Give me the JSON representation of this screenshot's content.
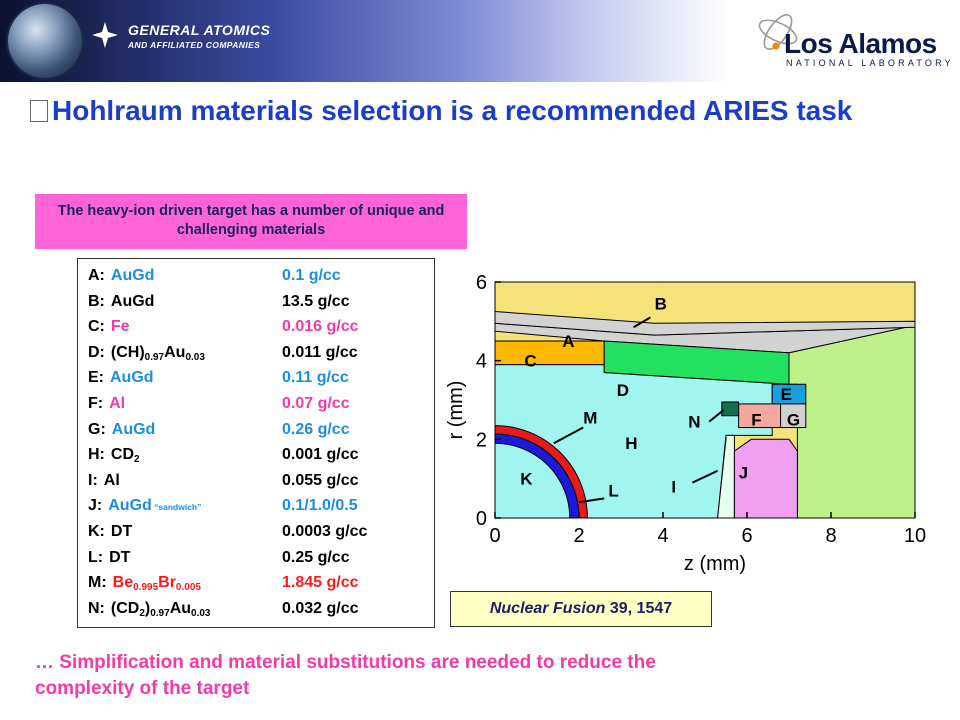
{
  "banner": {
    "ga_name": "GENERAL ATOMICS",
    "ga_sub": "AND AFFILIATED COMPANIES",
    "la_name": "Los Alamos",
    "la_sub": "NATIONAL LABORATORY",
    "gradient_colors": [
      "#0a1230",
      "#3a4aa0",
      "#ffffff"
    ]
  },
  "title": "Hohlraum materials selection is a recommended ARIES task",
  "callout": "The heavy-ion driven target has a number of unique and challenging materials",
  "materials": [
    {
      "key": "A:",
      "name": "AuGd",
      "sub": [],
      "color": "#1a8ee0",
      "value": "0.1 g/cc",
      "value_color": "#1a8ee0"
    },
    {
      "key": "B:",
      "name": "AuGd",
      "sub": [],
      "color": "#000000",
      "value": "13.5 g/cc",
      "value_color": "#000000"
    },
    {
      "key": "C:",
      "name": "Fe",
      "sub": [],
      "color": "#f23aa8",
      "value": "0.016 g/cc",
      "value_color": "#f23aa8"
    },
    {
      "key": "D:",
      "name_parts": [
        "(CH)",
        "0.97",
        "Au",
        "0.03"
      ],
      "color": "#000000",
      "value": "0.011 g/cc",
      "value_color": "#000000"
    },
    {
      "key": "E:",
      "name": "AuGd",
      "sub": [],
      "color": "#1a8ee0",
      "value": "0.11 g/cc",
      "value_color": "#1a8ee0"
    },
    {
      "key": "F:",
      "name": "Al",
      "sub": [],
      "color": "#f23aa8",
      "value": "0.07 g/cc",
      "value_color": "#f23aa8"
    },
    {
      "key": "G:",
      "name": "AuGd",
      "sub": [],
      "color": "#1a8ee0",
      "value": "0.26 g/cc",
      "value_color": "#1a8ee0"
    },
    {
      "key": "H:",
      "name_parts": [
        "CD",
        "2"
      ],
      "color": "#000000",
      "value": "0.001 g/cc",
      "value_color": "#000000"
    },
    {
      "key": "I:",
      "name": "Al",
      "sub": [],
      "color": "#000000",
      "value": "0.055 g/cc",
      "value_color": "#000000"
    },
    {
      "key": "J:",
      "name": "AuGd",
      "note": "“sandwich”",
      "color": "#1a8ee0",
      "value": "0.1/1.0/0.5",
      "value_color": "#1a8ee0"
    },
    {
      "key": "K:",
      "name": "DT",
      "sub": [],
      "color": "#000000",
      "value": "0.0003 g/cc",
      "value_color": "#000000"
    },
    {
      "key": "L:",
      "name": "DT",
      "sub": [],
      "color": "#000000",
      "value": "0.25 g/cc",
      "value_color": "#000000"
    },
    {
      "key": "M:",
      "name_parts": [
        "Be",
        "0.995",
        "Br",
        "0.005"
      ],
      "color": "#ff1a1a",
      "value": "1.845 g/cc",
      "value_color": "#ff1a1a"
    },
    {
      "key": "N:",
      "name_parts": [
        "(CD",
        "2",
        ")",
        "0.97",
        "Au",
        "0.03"
      ],
      "color": "#000000",
      "value": "0.032 g/cc",
      "value_color": "#000000"
    }
  ],
  "diagram": {
    "xlabel": "z (mm)",
    "ylabel": "r (mm)",
    "x_ticks": [
      "0",
      "2",
      "4",
      "6",
      "8",
      "10"
    ],
    "y_ticks": [
      "0",
      "2",
      "4",
      "6"
    ],
    "xlim": [
      0,
      10
    ],
    "ylim": [
      0,
      6
    ],
    "region_labels": [
      "A",
      "B",
      "C",
      "D",
      "E",
      "F",
      "G",
      "H",
      "I",
      "J",
      "K",
      "L",
      "M",
      "N"
    ],
    "colors": {
      "outer_fill": "#f5e37a",
      "case": "#d3d3d3",
      "region_c": "#ffb800",
      "region_d": "#22e060",
      "region_e": "#1aa0e0",
      "region_f": "#f5a8a0",
      "region_g": "#d0d0d0",
      "region_h": "#a0f5f0",
      "region_j": "#f0a0f0",
      "region_side": "#c0f08a",
      "shell_m": "#e81a1a",
      "shell_l": "#1a1ad8",
      "region_n": "#107050"
    }
  },
  "reference": {
    "journal": "Nuclear Fusion",
    "rest": " 39, 1547"
  },
  "footer": "… Simplification and material substitutions are needed to reduce the complexity of the target"
}
